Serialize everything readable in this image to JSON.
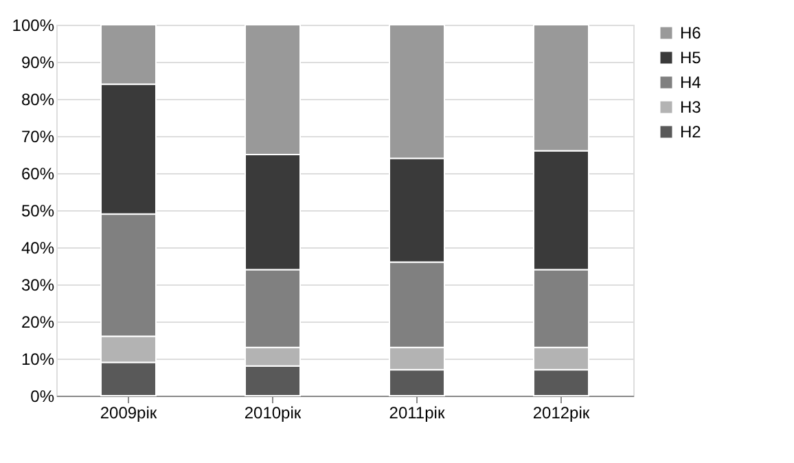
{
  "chart_data": {
    "type": "bar",
    "stacked": true,
    "categories": [
      "2009рік",
      "2010рік",
      "2011рік",
      "2012рік"
    ],
    "series": [
      {
        "name": "H2",
        "color": "#595959",
        "values": [
          9,
          8,
          7,
          7
        ]
      },
      {
        "name": "H3",
        "color": "#b3b3b3",
        "values": [
          7,
          5,
          6,
          6
        ]
      },
      {
        "name": "H4",
        "color": "#808080",
        "values": [
          33,
          21,
          23,
          21
        ]
      },
      {
        "name": "H5",
        "color": "#3a3a3a",
        "values": [
          35,
          31,
          28,
          32
        ]
      },
      {
        "name": "H6",
        "color": "#999999",
        "values": [
          16,
          35,
          36,
          34
        ]
      }
    ],
    "ylim": [
      0,
      100
    ],
    "yticks": [
      {
        "value": 0,
        "label": "0%"
      },
      {
        "value": 10,
        "label": "10%"
      },
      {
        "value": 20,
        "label": "20%"
      },
      {
        "value": 30,
        "label": "30%"
      },
      {
        "value": 40,
        "label": "40%"
      },
      {
        "value": 50,
        "label": "50%"
      },
      {
        "value": 60,
        "label": "60%"
      },
      {
        "value": 70,
        "label": "70%"
      },
      {
        "value": 80,
        "label": "80%"
      },
      {
        "value": 90,
        "label": "90%"
      },
      {
        "value": 100,
        "label": "100%"
      }
    ],
    "grid": "y",
    "legend": "right"
  }
}
